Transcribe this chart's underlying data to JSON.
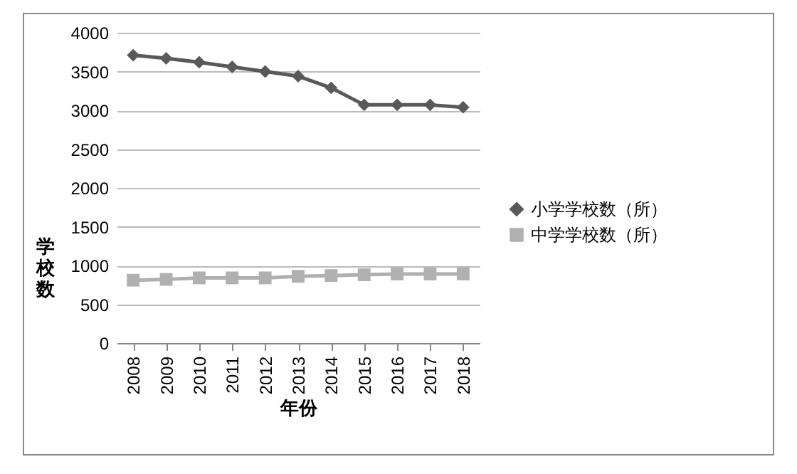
{
  "chart_data": {
    "type": "line",
    "xlabel": "年份",
    "ylabel": "学校数",
    "categories": [
      "2008",
      "2009",
      "2010",
      "2011",
      "2012",
      "2013",
      "2014",
      "2015",
      "2016",
      "2017",
      "2018"
    ],
    "series": [
      {
        "name": "小学学校数（所）",
        "color": "#595959",
        "marker": "diamond",
        "values": [
          3710,
          3670,
          3620,
          3560,
          3500,
          3440,
          3290,
          3070,
          3070,
          3070,
          3040
        ]
      },
      {
        "name": "中学学校数（所）",
        "color": "#b0b0b0",
        "marker": "square",
        "values": [
          810,
          820,
          840,
          840,
          840,
          860,
          870,
          880,
          890,
          890,
          890
        ]
      }
    ],
    "ylim": [
      0,
      4000
    ],
    "yticks": [
      0,
      500,
      1000,
      1500,
      2000,
      2500,
      3000,
      3500,
      4000
    ],
    "grid": "y",
    "legend": "right"
  }
}
